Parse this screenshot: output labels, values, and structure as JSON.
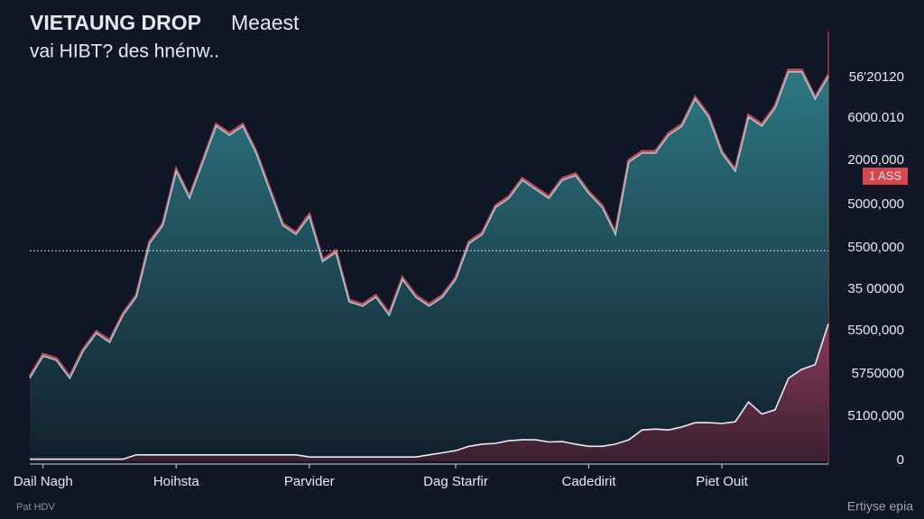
{
  "chart_data": {
    "type": "area",
    "title": "VIETAUNG DROP",
    "title_suffix": "Meaest",
    "subtitle": "vai HIBT? des hnénw..",
    "badge": "1 ASS",
    "footer_left": "Pat HDV",
    "footer_right": "Ertiyse epia",
    "y_labels": [
      "56'20120",
      "6000.010",
      "2000,000",
      "5000,000",
      "5500,000",
      "35 00000",
      "5500,000",
      "5750000",
      "5100,000",
      "0"
    ],
    "x": [
      0,
      1,
      2,
      3,
      4,
      5,
      6,
      7,
      8,
      9,
      10,
      11,
      12,
      13,
      14,
      15,
      16,
      17,
      18,
      19,
      20,
      21,
      22,
      23,
      24,
      25,
      26,
      27,
      28,
      29,
      30,
      31,
      32,
      33,
      34,
      35,
      36,
      37,
      38,
      39,
      40,
      41,
      42,
      43,
      44,
      45,
      46,
      47,
      48,
      49,
      50,
      51,
      52,
      53,
      54,
      55,
      56,
      57,
      58,
      59,
      60
    ],
    "xlim": [
      0,
      60
    ],
    "xticks": [
      {
        "value": 1,
        "label": "Dail Nagh"
      },
      {
        "value": 11,
        "label": "Hoihsta"
      },
      {
        "value": 21,
        "label": "Parvider"
      },
      {
        "value": 32,
        "label": "Dag Starfir"
      },
      {
        "value": 42,
        "label": "Cadedirit"
      },
      {
        "value": 52,
        "label": "Piet Ouit"
      }
    ],
    "ylim": [
      0,
      100
    ],
    "reference_line": 49,
    "series": [
      {
        "color": "#7fd6de",
        "fill": "#2f7d86",
        "values": [
          19.3,
          24.5,
          23.5,
          19.3,
          25.6,
          29.8,
          27.7,
          34,
          38.2,
          50.7,
          54.9,
          67.5,
          61.2,
          69.6,
          78,
          75.9,
          78,
          71.7,
          63.3,
          54.9,
          52.8,
          57,
          46.5,
          48.6,
          37.1,
          36.1,
          38.2,
          34,
          42.3,
          38.2,
          36.1,
          38.2,
          42.3,
          50.7,
          52.8,
          59.1,
          61.2,
          65.4,
          63.3,
          61.2,
          65.4,
          66.5,
          62.3,
          59.1,
          52.8,
          69.6,
          71.7,
          71.7,
          75.9,
          78,
          84.3,
          80.1,
          71.7,
          67.5,
          80.1,
          78,
          82.2,
          90.6,
          90.6,
          84.3,
          89.5
        ]
      },
      {
        "color": "#f2e6ec",
        "fill": "#8b3a55",
        "values": [
          0.5,
          0.5,
          0.5,
          0.5,
          0.5,
          0.5,
          0.5,
          0.5,
          1.5,
          1.5,
          1.5,
          1.5,
          1.5,
          1.5,
          1.5,
          1.5,
          1.5,
          1.5,
          1.5,
          1.5,
          1.5,
          1,
          1,
          1,
          1,
          1,
          1,
          1,
          1,
          1,
          1.5,
          2,
          2.5,
          3.5,
          4,
          4.2,
          4.8,
          5,
          5,
          4.5,
          4.6,
          4,
          3.5,
          3.5,
          4,
          5,
          7.3,
          7.5,
          7.3,
          8,
          9,
          9,
          8.8,
          9.2,
          13.8,
          11,
          12,
          19.3,
          21.4,
          22.5,
          32
        ]
      }
    ]
  }
}
